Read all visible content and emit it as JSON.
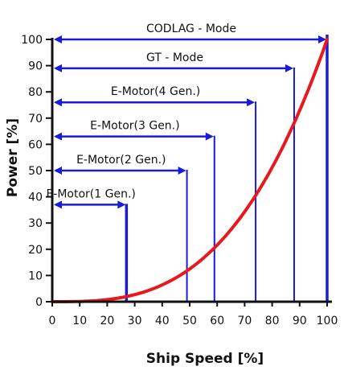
{
  "chart_data": {
    "type": "line",
    "title": "",
    "xlabel": "Ship Speed [%]",
    "ylabel": "Power [%]",
    "xlim": [
      0,
      100
    ],
    "ylim": [
      0,
      100
    ],
    "x_ticks": [
      0,
      10,
      20,
      30,
      40,
      50,
      60,
      70,
      80,
      90,
      100
    ],
    "y_ticks": [
      0,
      10,
      20,
      30,
      40,
      50,
      60,
      70,
      80,
      90,
      100
    ],
    "grid": false,
    "series": [
      {
        "color": "#e8191c",
        "x": [
          0,
          10,
          20,
          30,
          40,
          50,
          60,
          70,
          80,
          90,
          100
        ],
        "y": [
          0,
          0.1,
          0.8,
          2.7,
          6.4,
          12.5,
          21.6,
          34.3,
          51.2,
          72.9,
          100
        ]
      }
    ],
    "operating_ranges": [
      {
        "label": "E-Motor(1 Gen.)",
        "max_speed": 27,
        "arrow_y": 37
      },
      {
        "label": "E-Motor(2 Gen.)",
        "max_speed": 49,
        "arrow_y": 50
      },
      {
        "label": "E-Motor(3 Gen.)",
        "max_speed": 59,
        "arrow_y": 63
      },
      {
        "label": "E-Motor(4 Gen.)",
        "max_speed": 74,
        "arrow_y": 76
      },
      {
        "label": "GT - Mode",
        "max_speed": 88,
        "arrow_y": 89
      },
      {
        "label": "CODLAG - Mode",
        "max_speed": 100,
        "arrow_y": 100
      }
    ],
    "colors": {
      "curve": "#e8191c",
      "ranges": "#1a1adb",
      "axes": "#111111"
    }
  }
}
